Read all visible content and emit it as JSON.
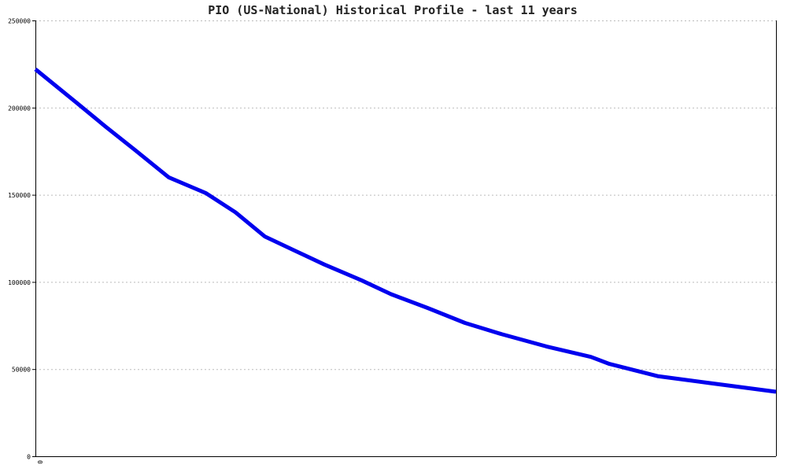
{
  "chart_data": {
    "type": "line",
    "title": "PIO (US-National) Historical Profile - last 11 years",
    "xlabel": "",
    "ylabel": "",
    "x_tick_labels": [
      "0"
    ],
    "ylim": [
      0,
      250000
    ],
    "y_ticks": [
      0,
      50000,
      100000,
      150000,
      200000,
      250000
    ],
    "grid": true,
    "line_color": "#0000ee",
    "series": [
      {
        "x": [
          0,
          0.055,
          0.095,
          0.135,
          0.18,
          0.23,
          0.27,
          0.31,
          0.35,
          0.39,
          0.44,
          0.48,
          0.53,
          0.58,
          0.63,
          0.69,
          0.75,
          0.775,
          0.84,
          0.91,
          1.0
        ],
        "values": [
          222000,
          203000,
          189000,
          175500,
          160000,
          151000,
          140000,
          126000,
          118000,
          110000,
          101000,
          93000,
          85000,
          76500,
          70000,
          63000,
          57000,
          53000,
          46000,
          42000,
          37000
        ]
      }
    ]
  }
}
